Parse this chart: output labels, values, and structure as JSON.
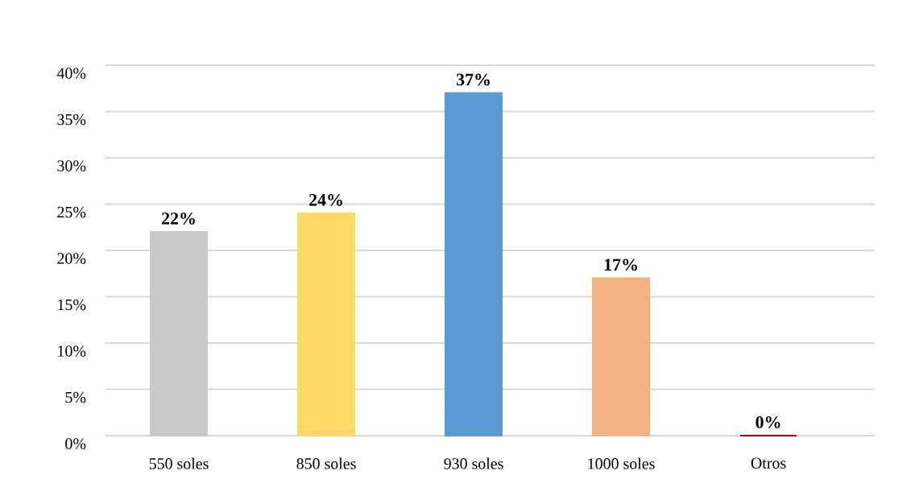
{
  "chart_data": {
    "type": "bar",
    "categories": [
      "550 soles",
      "850 soles",
      "930 soles",
      "1000 soles",
      "Otros"
    ],
    "values": [
      22,
      24,
      37,
      17,
      0
    ],
    "colors": [
      "#c9c9c9",
      "#ffd966",
      "#5b9bd5",
      "#f4b183",
      "#c00000"
    ],
    "ylim": [
      0,
      40
    ],
    "yticks": [
      {
        "value": 0,
        "label": "0%"
      },
      {
        "value": 5,
        "label": "5%"
      },
      {
        "value": 10,
        "label": "10%"
      },
      {
        "value": 15,
        "label": "15%"
      },
      {
        "value": 20,
        "label": "20%"
      },
      {
        "value": 25,
        "label": "25%"
      },
      {
        "value": 30,
        "label": "30%"
      },
      {
        "value": 35,
        "label": "35%"
      },
      {
        "value": 40,
        "label": "40%"
      }
    ],
    "grid": "y",
    "value_labels": [
      "22%",
      "24%",
      "37%",
      "17%",
      "0%"
    ]
  }
}
